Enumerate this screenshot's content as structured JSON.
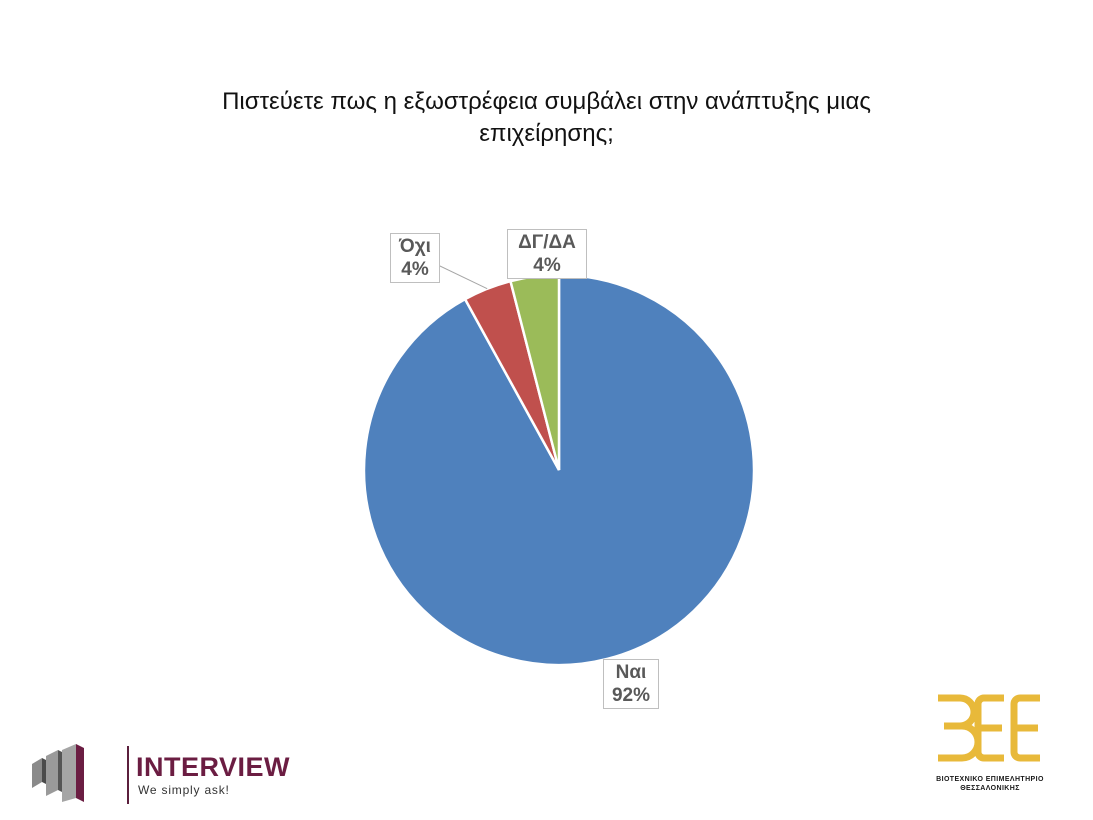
{
  "chart_data": {
    "type": "pie",
    "title_lines": [
      "Πιστεύετε πως η εξωστρέφεια συμβάλει στην ανάπτυξης μιας",
      "επιχείρησης;"
    ],
    "slices": [
      {
        "name": "Ναι",
        "value": 92,
        "label": "92%",
        "color": "#4f81bd"
      },
      {
        "name": "Όχι",
        "value": 4,
        "label": "4%",
        "color": "#c0504d"
      },
      {
        "name": "ΔΓ/ΔΑ",
        "value": 4,
        "label": "4%",
        "color": "#9bbb59"
      }
    ],
    "start": "12 o'clock",
    "direction": "clockwise",
    "legend": "none",
    "data_labels": "category and percentage in boxes"
  },
  "logos": {
    "left": {
      "brand": "INTERVIEW",
      "tagline": "We simply ask!",
      "color": "#6b1d42"
    },
    "right": {
      "mark": "ΒΕΘ",
      "org_line1": "ΒΙΟΤΕΧΝΙΚΟ ΕΠΙΜΕΛΗΤΗΡΙΟ",
      "org_line2": "ΘΕΣΣΑΛΟΝΙΚΗΣ",
      "color": "#e8b93a"
    }
  }
}
